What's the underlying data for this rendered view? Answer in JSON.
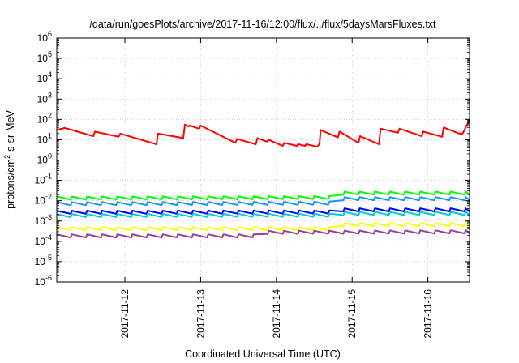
{
  "chart_data": {
    "type": "line",
    "title": "/data/run/goesPlots/archive/2017-11-16/12:00/flux/../flux/5daysMarsFluxes.txt",
    "xlabel": "Coordinated Universal Time (UTC)",
    "ylabel": "protons/cm²-s-sr-MeV",
    "ylabel_base": "protons/cm",
    "ylabel_sup": "2",
    "ylabel_rest": "-s-sr-MeV",
    "yscale": "log",
    "ylim": [
      1e-06,
      1000000.0
    ],
    "y_ticks": [
      {
        "exp": "-6"
      },
      {
        "exp": "-5"
      },
      {
        "exp": "-4"
      },
      {
        "exp": "-3"
      },
      {
        "exp": "-2"
      },
      {
        "exp": "-1"
      },
      {
        "exp": "0"
      },
      {
        "exp": "1"
      },
      {
        "exp": "2"
      },
      {
        "exp": "3"
      },
      {
        "exp": "4"
      },
      {
        "exp": "5"
      },
      {
        "exp": "6"
      }
    ],
    "xlim": [
      "2017-11-11 02:24",
      "2017-11-16 13:12"
    ],
    "x_ticks": [
      "2017-11-12",
      "2017-11-13",
      "2017-11-14",
      "2017-11-15",
      "2017-11-16"
    ],
    "grid": true,
    "series": [
      {
        "color": "#ff0000",
        "x": [
          "2017-11-11 02:24",
          "2017-11-11 05:00",
          "2017-11-11 14:00",
          "2017-11-11 14:30",
          "2017-11-11 22:00",
          "2017-11-11 22:30",
          "2017-11-12 10:00",
          "2017-11-12 10:30",
          "2017-11-12 18:30",
          "2017-11-12 19:00",
          "2017-11-12 20:00",
          "2017-11-12 20:30",
          "2017-11-12 23:30",
          "2017-11-13 00:00",
          "2017-11-13 11:00",
          "2017-11-13 11:30",
          "2017-11-13 17:30",
          "2017-11-13 18:00",
          "2017-11-13 21:00",
          "2017-11-13 21:30",
          "2017-11-14 02:00",
          "2017-11-14 02:30",
          "2017-11-14 06:30",
          "2017-11-14 07:00",
          "2017-11-14 09:00",
          "2017-11-14 09:30",
          "2017-11-14 13:00",
          "2017-11-14 13:30",
          "2017-11-14 13:40",
          "2017-11-14 14:00",
          "2017-11-14 19:30",
          "2017-11-14 20:00",
          "2017-11-15 02:00",
          "2017-11-15 02:30",
          "2017-11-15 08:30",
          "2017-11-15 09:00",
          "2017-11-15 14:30",
          "2017-11-15 15:00",
          "2017-11-15 22:00",
          "2017-11-15 22:30",
          "2017-11-16 04:30",
          "2017-11-16 05:00",
          "2017-11-16 10:00",
          "2017-11-16 11:00",
          "2017-11-16 13:12"
        ],
        "y": [
          30,
          38,
          15,
          25,
          14,
          20,
          6,
          20,
          12,
          55,
          45,
          50,
          35,
          50,
          7,
          11,
          6,
          12,
          8,
          10,
          5,
          7,
          5,
          6,
          5,
          6,
          4.5,
          6,
          6,
          30,
          13,
          25,
          7,
          15,
          6,
          35,
          22,
          35,
          15,
          25,
          14,
          40,
          20,
          20,
          95
        ]
      },
      {
        "color": "#00ff00",
        "x": [
          "2017-11-11 02:24",
          "2017-11-14 19:30",
          "2017-11-14 20:00",
          "2017-11-16 13:12"
        ],
        "y": [
          0.016,
          0.017,
          0.028,
          0.028
        ],
        "saw": {
          "period_hours": 4.8,
          "ratio": 0.7
        }
      },
      {
        "color": "#1e90ff",
        "x": [
          "2017-11-11 02:24",
          "2017-11-14 19:30",
          "2017-11-14 20:00",
          "2017-11-16 13:12"
        ],
        "y": [
          0.0085,
          0.009,
          0.015,
          0.015
        ],
        "saw": {
          "period_hours": 4.8,
          "ratio": 0.7
        }
      },
      {
        "color": "#0000ff",
        "x": [
          "2017-11-11 02:24",
          "2017-11-14 19:30",
          "2017-11-14 20:00",
          "2017-11-16 13:12"
        ],
        "y": [
          0.0032,
          0.0033,
          0.0042,
          0.0042
        ],
        "saw": {
          "period_hours": 4.8,
          "ratio": 0.7
        }
      },
      {
        "color": "#00cfcf",
        "x": [
          "2017-11-11 02:24",
          "2017-11-14 19:30",
          "2017-11-14 20:00",
          "2017-11-16 13:12"
        ],
        "y": [
          0.0022,
          0.0023,
          0.0028,
          0.0028
        ],
        "saw": {
          "period_hours": 4.8,
          "ratio": 0.7
        }
      },
      {
        "color": "#ffff00",
        "x": [
          "2017-11-11 02:24",
          "2017-11-14 19:30",
          "2017-11-14 20:00",
          "2017-11-16 13:12"
        ],
        "y": [
          0.0005,
          0.0005,
          0.0008,
          0.0008
        ],
        "saw": {
          "period_hours": 4.8,
          "ratio": 0.7
        }
      },
      {
        "color": "#9b3f8f",
        "x": [
          "2017-11-11 02:24",
          "2017-11-13 18:00",
          "2017-11-13 18:30",
          "2017-11-16 13:12"
        ],
        "y": [
          0.00022,
          0.00022,
          0.00033,
          0.00035
        ],
        "saw": {
          "period_hours": 4.8,
          "ratio": 0.7
        }
      }
    ]
  }
}
